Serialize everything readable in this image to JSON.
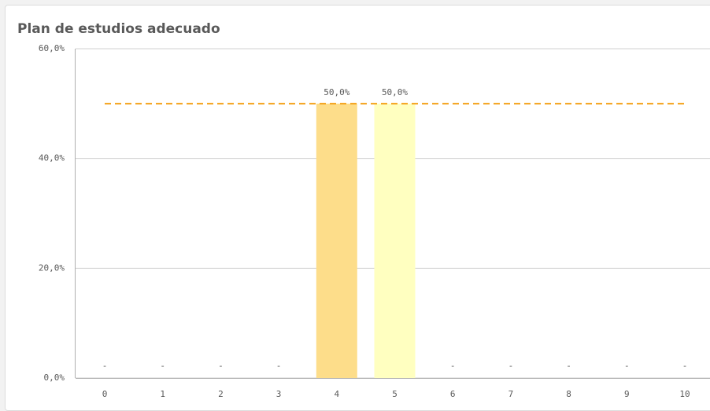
{
  "chart_data": {
    "type": "bar",
    "title": "Plan de estudios adecuado",
    "categories": [
      "0",
      "1",
      "2",
      "3",
      "4",
      "5",
      "6",
      "7",
      "8",
      "9",
      "10"
    ],
    "values": [
      null,
      null,
      null,
      null,
      50,
      50,
      null,
      null,
      null,
      null,
      null
    ],
    "value_labels": [
      "-",
      "-",
      "-",
      "-",
      "50,0%",
      "50,0%",
      "-",
      "-",
      "-",
      "-",
      "-"
    ],
    "colors": [
      null,
      null,
      null,
      null,
      "#fddd8a",
      "#ffffc0",
      null,
      null,
      null,
      null,
      null
    ],
    "ylim": [
      0,
      60
    ],
    "yticks": [
      {
        "value": 0,
        "label": "0,0%"
      },
      {
        "value": 20,
        "label": "20,0%"
      },
      {
        "value": 40,
        "label": "40,0%"
      },
      {
        "value": 60,
        "label": "60,0%"
      }
    ],
    "grid": true,
    "reference_line": {
      "value": 50,
      "color": "#f5a623"
    }
  }
}
